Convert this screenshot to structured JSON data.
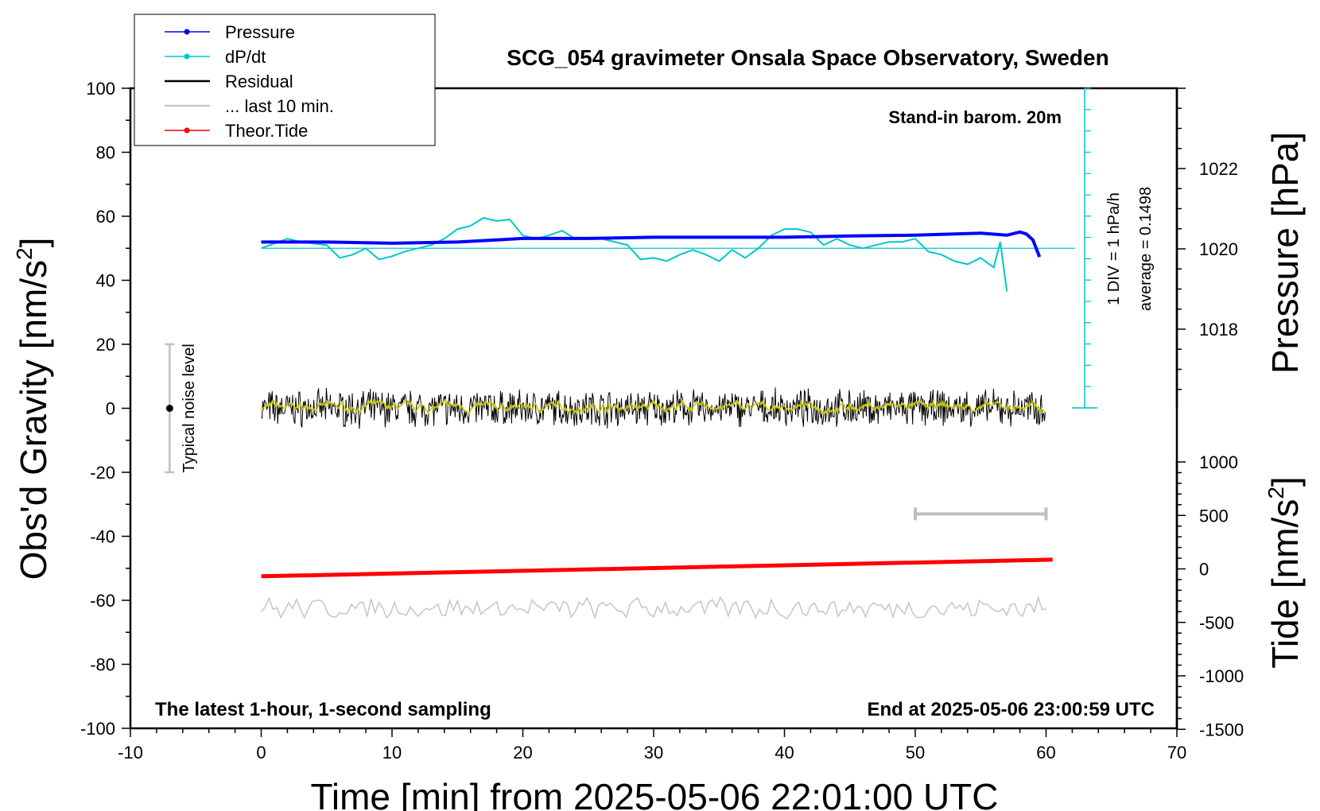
{
  "chart_data": {
    "type": "line",
    "title": "SCG_054 gravimeter Onsala Space Observatory, Sweden",
    "xlabel": "Time [min] from 2025-05-06 22:01:00 UTC",
    "ylabel": "Obs'd Gravity [nm/s",
    "ylabel_sup": "2",
    "ylabel_end": "]",
    "y2label": "Pressure [hPa]",
    "y3label": "Tide [nm/s",
    "y3label_sup": "2",
    "y3label_end": "]",
    "xlim": [
      -10,
      70
    ],
    "ylim": [
      -100,
      100
    ],
    "pressure_range": [
      1018,
      1022
    ],
    "tide_range": [
      -1500,
      1000
    ],
    "x_ticks": [
      "-10",
      "0",
      "10",
      "20",
      "30",
      "40",
      "50",
      "60",
      "70"
    ],
    "y_ticks": [
      "100",
      "80",
      "60",
      "40",
      "20",
      "0",
      "-20",
      "-40",
      "-60",
      "-80",
      "-100"
    ],
    "pressure_ticks": [
      "1022",
      "1020",
      "1018"
    ],
    "tide_ticks": [
      "1000",
      "500",
      "0",
      "-500",
      "-1000",
      "-1500"
    ],
    "legend": [
      {
        "name": "Pressure",
        "color": "#0000ff",
        "marker": true
      },
      {
        "name": "dP/dt",
        "color": "#00c8c8",
        "marker": true
      },
      {
        "name": "Residual",
        "color": "#000000",
        "marker": false
      },
      {
        "name": "... last 10 min.",
        "color": "#c8c8c8",
        "marker": false
      },
      {
        "name": "Theor.Tide",
        "color": "#ff0000",
        "marker": true
      }
    ],
    "annotations": {
      "barometer": "Stand-in barom. 20m",
      "div_label": "1 DIV = 1 hPa/h",
      "average_label": "average = 0.1498",
      "noise_label": "Typical noise level",
      "bottom_left": "The latest 1-hour, 1-second sampling",
      "bottom_right": "End at 2025-05-06 23:00:59 UTC"
    },
    "series": [
      {
        "name": "Pressure",
        "unit": "hPa",
        "x": [
          0,
          5,
          10,
          15,
          20,
          25,
          30,
          35,
          40,
          45,
          50,
          55,
          57,
          58,
          58.5,
          59,
          59.5
        ],
        "values": [
          1020.17,
          1020.17,
          1020.14,
          1020.17,
          1020.26,
          1020.26,
          1020.29,
          1020.29,
          1020.29,
          1020.32,
          1020.34,
          1020.39,
          1020.34,
          1020.42,
          1020.37,
          1020.22,
          1019.8
        ]
      },
      {
        "name": "dP/dt",
        "unit": "nm/s2",
        "x": [
          0,
          2,
          3,
          5,
          6,
          7,
          8,
          9,
          10,
          11,
          12,
          13,
          14,
          15,
          16,
          17,
          18,
          19,
          20,
          21,
          22,
          23,
          24,
          26,
          28,
          29,
          30,
          31,
          32,
          33,
          34,
          35,
          36,
          37,
          38,
          39,
          40,
          41,
          42,
          43,
          44,
          45,
          46,
          47,
          48,
          49,
          50,
          51,
          52,
          53,
          54,
          55,
          56,
          56.5,
          57
        ],
        "values": [
          50,
          53,
          52,
          51,
          47,
          48,
          50,
          46.5,
          47.5,
          49,
          50,
          51,
          53,
          56,
          57,
          59.5,
          58.5,
          59,
          54,
          53,
          54,
          55.5,
          53,
          53,
          51,
          46.5,
          47,
          46,
          48,
          49.5,
          48,
          46,
          49.5,
          47,
          50,
          54,
          56,
          56,
          55,
          51,
          53,
          51,
          50,
          51,
          52,
          52,
          53,
          49,
          48,
          46,
          45,
          47,
          44,
          52,
          36.5
        ]
      },
      {
        "name": "Theor.Tide",
        "unit": "nm/s2",
        "x": [
          0,
          60.5
        ],
        "values": [
          -52.5,
          -47.3
        ]
      }
    ],
    "dpdt_average_line": 50,
    "noise_bar": {
      "x": -7,
      "center": 0,
      "low": -20,
      "high": 20
    },
    "ten_min_bar": {
      "x_start": 50,
      "x_end": 60,
      "y": -33
    }
  }
}
